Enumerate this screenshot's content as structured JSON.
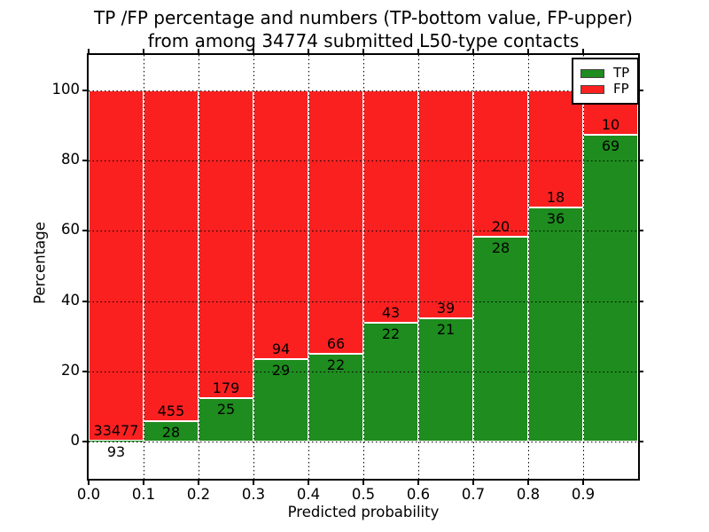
{
  "title": {
    "line1": "TP /FP percentage and numbers (TP-bottom value, FP-upper)",
    "line2": "from among 34774 submitted L50-type contacts"
  },
  "axes": {
    "xlabel": "Predicted probability",
    "ylabel": "Percentage",
    "x_ticks": [
      {
        "label": "0.0",
        "value": 0.0
      },
      {
        "label": "0.1",
        "value": 0.1
      },
      {
        "label": "0.2",
        "value": 0.2
      },
      {
        "label": "0.3",
        "value": 0.3
      },
      {
        "label": "0.4",
        "value": 0.4
      },
      {
        "label": "0.5",
        "value": 0.5
      },
      {
        "label": "0.6",
        "value": 0.6
      },
      {
        "label": "0.7",
        "value": 0.7
      },
      {
        "label": "0.8",
        "value": 0.8
      },
      {
        "label": "0.9",
        "value": 0.9
      }
    ],
    "y_ticks": [
      {
        "label": "0",
        "value": 0
      },
      {
        "label": "20",
        "value": 20
      },
      {
        "label": "40",
        "value": 40
      },
      {
        "label": "60",
        "value": 60
      },
      {
        "label": "80",
        "value": 80
      },
      {
        "label": "100",
        "value": 100
      }
    ]
  },
  "legend": {
    "items": [
      {
        "label": "TP",
        "color": "#1e8c1e"
      },
      {
        "label": "FP",
        "color": "#fb2020"
      }
    ],
    "position": "upper right"
  },
  "colors": {
    "tp": "#1e8c1e",
    "fp": "#fb2020",
    "grid": "#000000",
    "background": "#ffffff",
    "bar_edge": "#ffffff"
  },
  "chart_data": {
    "type": "bar",
    "stacked": true,
    "normalized": "percent-of-bin",
    "title": "TP /FP percentage and numbers (TP-bottom value, FP-upper) from among 34774 submitted L50-type contacts",
    "xlabel": "Predicted probability",
    "ylabel": "Percentage",
    "xlim": [
      0.0,
      1.0
    ],
    "ylim": [
      -10.8,
      110.5
    ],
    "grid": "dotted-black",
    "legend_position": "upper right",
    "total_contacts": 34774,
    "bin_edges": [
      0.0,
      0.1,
      0.2,
      0.3,
      0.4,
      0.5,
      0.6,
      0.7,
      0.8,
      0.9,
      1.0
    ],
    "series": [
      {
        "name": "TP",
        "color": "#1e8c1e",
        "counts": [
          93,
          28,
          25,
          29,
          22,
          22,
          21,
          28,
          36,
          69
        ]
      },
      {
        "name": "FP",
        "color": "#fb2020",
        "counts": [
          33477,
          455,
          179,
          94,
          66,
          43,
          39,
          20,
          18,
          10
        ]
      }
    ],
    "tp_percent_of_bin": [
      0.28,
      5.8,
      12.25,
      23.58,
      25.0,
      33.85,
      35.0,
      58.33,
      66.67,
      87.34
    ]
  }
}
